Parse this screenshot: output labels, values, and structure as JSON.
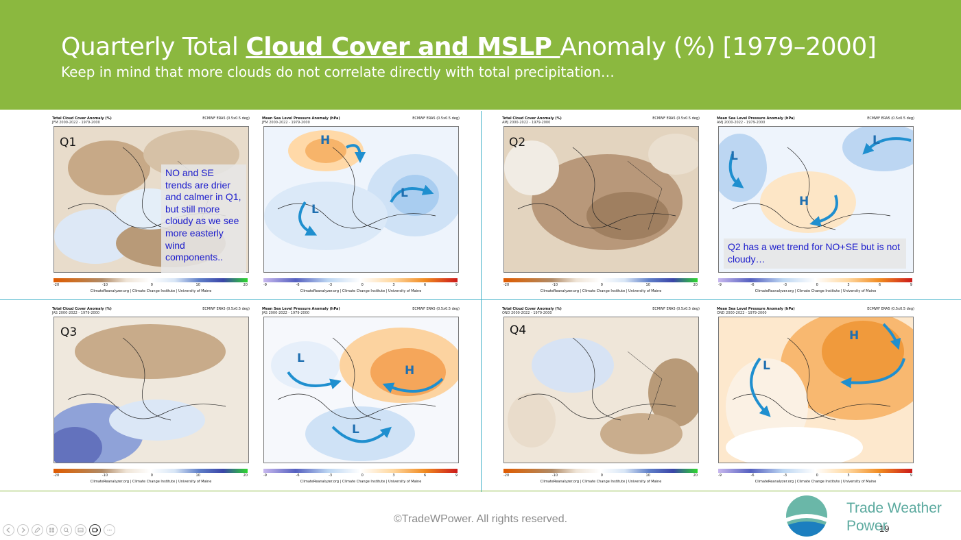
{
  "header": {
    "title_pre": "Quarterly Total ",
    "title_emph": "Cloud Cover and MSLP ",
    "title_post": "Anomaly (%) [1979–2000]",
    "subtitle": "Keep in mind that more clouds do not correlate directly with total precipitation…",
    "bg_color": "#8bb83f"
  },
  "panels": {
    "q1_cloud": {
      "title": "Total Cloud Cover Anomaly (%)",
      "sub": "JFM 2000-2022 - 1979-2000",
      "src": "ECMWF ERA5 (0.5x0.5 deg)",
      "credit": "ClimateReanalyzer.org | Climate Change Institute | University of Maine",
      "ticks": [
        "-20",
        "-10",
        "0",
        "10",
        "20"
      ]
    },
    "q1_mslp": {
      "title": "Mean Sea Level Pressure Anomaly (hPa)",
      "sub": "JFM 2000-2022 - 1979-2000",
      "src": "ECMWF ERA5 (0.5x0.5 deg)",
      "credit": "ClimateReanalyzer.org | Climate Change Institute | University of Maine",
      "ticks": [
        "-9",
        "-6",
        "-3",
        "0",
        "3",
        "6",
        "9"
      ]
    },
    "q2_cloud": {
      "title": "Total Cloud Cover Anomaly (%)",
      "sub": "AMJ 2000-2022 - 1979-2000",
      "src": "ECMWF ERA5 (0.5x0.5 deg)",
      "credit": "ClimateReanalyzer.org | Climate Change Institute | University of Maine",
      "ticks": [
        "-20",
        "-10",
        "0",
        "10",
        "20"
      ]
    },
    "q2_mslp": {
      "title": "Mean Sea Level Pressure Anomaly (hPa)",
      "sub": "AMJ 2000-2022 - 1979-2000",
      "src": "ECMWF ERA5 (0.5x0.5 deg)",
      "credit": "ClimateReanalyzer.org | Climate Change Institute | University of Maine",
      "ticks": [
        "-9",
        "-6",
        "-3",
        "0",
        "3",
        "6",
        "9"
      ]
    },
    "q3_cloud": {
      "title": "Total Cloud Cover Anomaly (%)",
      "sub": "JAS 2000-2022 - 1979-2000",
      "src": "ECMWF ERA5 (0.5x0.5 deg)",
      "credit": "ClimateReanalyzer.org | Climate Change Institute | University of Maine",
      "ticks": [
        "-20",
        "-10",
        "0",
        "10",
        "20"
      ]
    },
    "q3_mslp": {
      "title": "Mean Sea Level Pressure Anomaly (hPa)",
      "sub": "JAS 2000-2022 - 1979-2000",
      "src": "ECMWF ERA5 (0.5x0.5 deg)",
      "credit": "ClimateReanalyzer.org | Climate Change Institute | University of Maine",
      "ticks": [
        "-9",
        "-6",
        "-3",
        "0",
        "3",
        "6",
        "9"
      ]
    },
    "q4_cloud": {
      "title": "Total Cloud Cover Anomaly (%)",
      "sub": "OND 2000-2022 - 1979-2000",
      "src": "ECMWF ERA5 (0.5x0.5 deg)",
      "credit": "ClimateReanalyzer.org | Climate Change Institute | University of Maine",
      "ticks": [
        "-20",
        "-10",
        "0",
        "10",
        "20"
      ]
    },
    "q4_mslp": {
      "title": "Mean Sea Level Pressure Anomaly (hPa)",
      "sub": "OND 2000-2022 - 1979-2000",
      "src": "ECMWF ERA5 (0.5x0.5 deg)",
      "credit": "ClimateReanalyzer.org | Climate Change Institute | University of Maine",
      "ticks": [
        "-9",
        "-6",
        "-3",
        "0",
        "3",
        "6",
        "9"
      ]
    }
  },
  "labels": {
    "q1": "Q1",
    "q2": "Q2",
    "q3": "Q3",
    "q4": "Q4",
    "high": "H",
    "low": "L"
  },
  "notes": {
    "q1": "NO and SE trends are drier and calmer in Q1, but still more cloudy as we see more easterly wind components..",
    "q2": "Q2 has a wet trend for NO+SE but is not cloudy…"
  },
  "footer": {
    "copyright": "©TradeWPower. All rights reserved.",
    "brand_line1": "Trade Weather",
    "brand_line2": "Power",
    "page_number": "19"
  },
  "toolbar": {
    "icons": [
      "prev-icon",
      "next-icon",
      "pen-icon",
      "slides-icon",
      "zoom-icon",
      "subtitles-icon",
      "camera-icon",
      "more-icon"
    ]
  }
}
